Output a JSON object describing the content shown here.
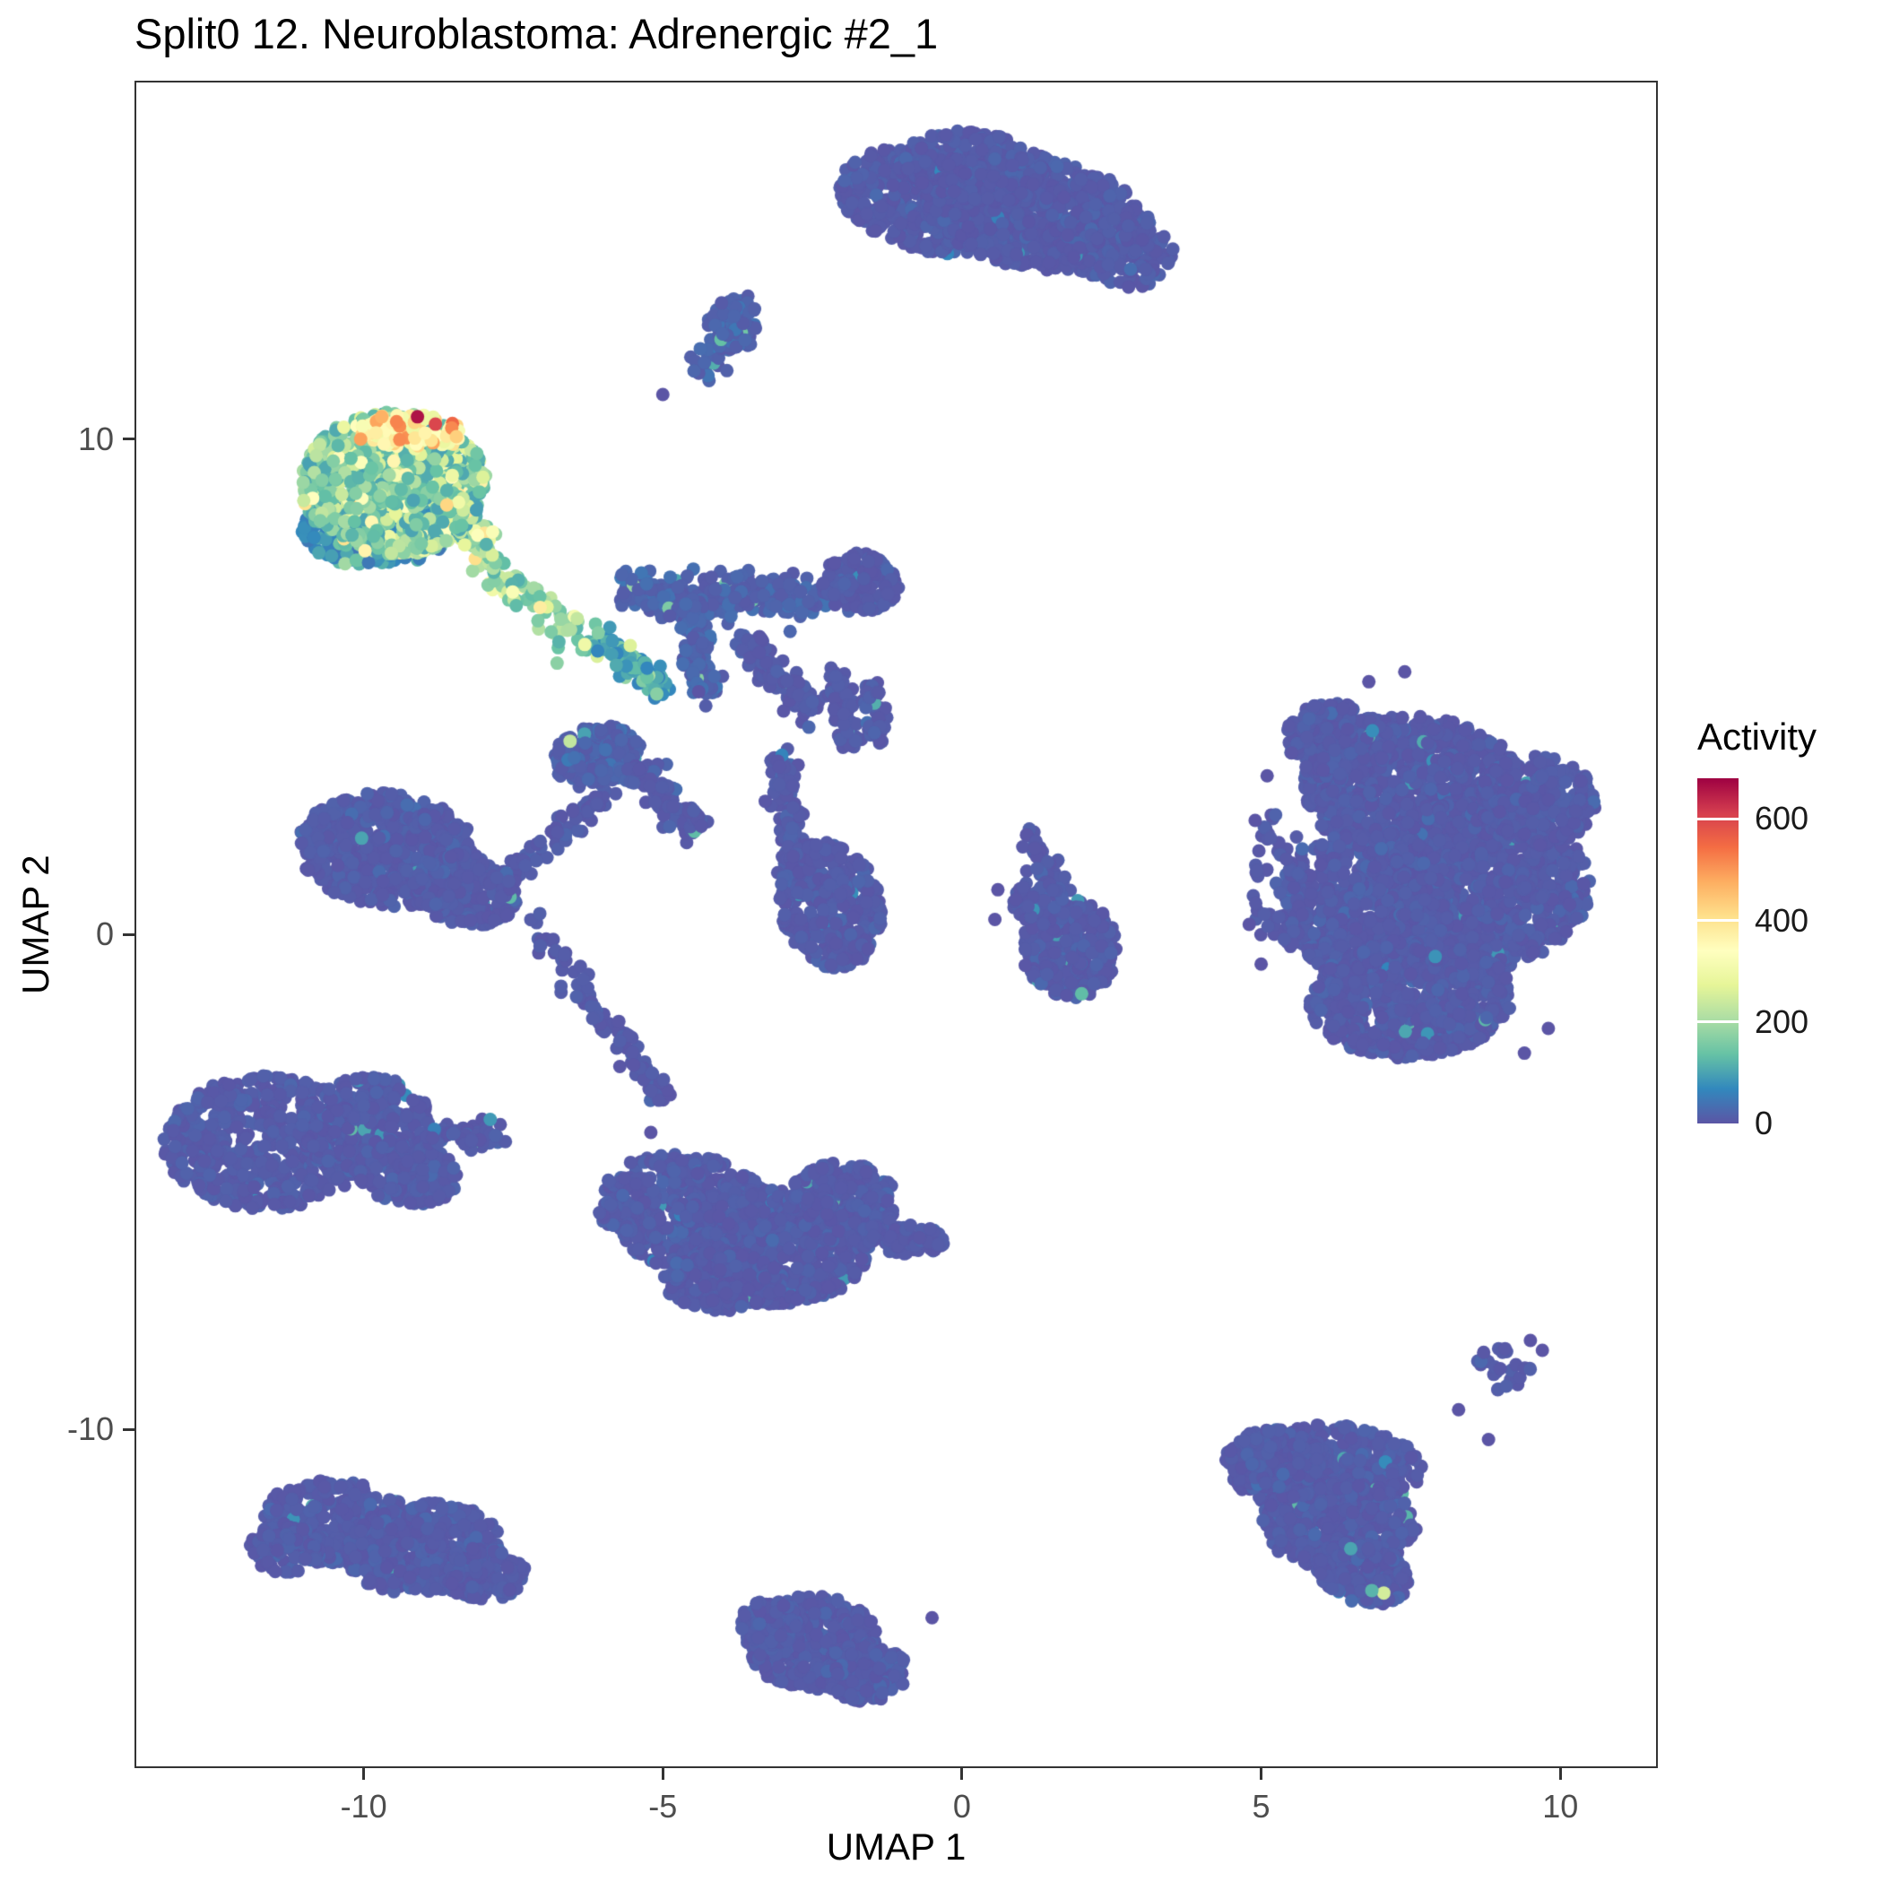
{
  "chart_data": {
    "type": "scatter",
    "title": "Split0 12. Neuroblastoma: Adrenergic #2_1",
    "xlabel": "UMAP 1",
    "ylabel": "UMAP 2",
    "xlim": [
      -13.8,
      11.6
    ],
    "ylim": [
      -16.8,
      17.2
    ],
    "xticks": [
      -10,
      -5,
      0,
      5,
      10
    ],
    "yticks": [
      10,
      0,
      -10
    ],
    "grid": false,
    "point_radius_px": 7.5,
    "legend": {
      "title": "Activity",
      "position": "right",
      "ticks": [
        600,
        400,
        200,
        0
      ],
      "domain": [
        0,
        680
      ]
    },
    "colormap": [
      {
        "v": 0,
        "c": "#5b55a5"
      },
      {
        "v": 68,
        "c": "#3288bd"
      },
      {
        "v": 136,
        "c": "#66c2a5"
      },
      {
        "v": 204,
        "c": "#abdda4"
      },
      {
        "v": 272,
        "c": "#e6f598"
      },
      {
        "v": 340,
        "c": "#ffffbf"
      },
      {
        "v": 408,
        "c": "#fee08b"
      },
      {
        "v": 476,
        "c": "#fdae61"
      },
      {
        "v": 544,
        "c": "#f46d43"
      },
      {
        "v": 612,
        "c": "#d53e4f"
      },
      {
        "v": 680,
        "c": "#9e0142"
      }
    ],
    "act_presets": {
      "low": {
        "b": 2,
        "s": 10,
        "p": 0.01,
        "lo": 50,
        "hi": 130
      },
      "low2": {
        "b": 6,
        "s": 18,
        "p": 0.04,
        "lo": 60,
        "hi": 200
      },
      "mid": {
        "b": 60,
        "s": 70,
        "p": 0.05,
        "lo": 200,
        "hi": 320
      },
      "trail": {
        "b": 110,
        "s": 95,
        "p": 0.12,
        "lo": 280,
        "hi": 420
      },
      "hot": {
        "b": 95,
        "s": 80,
        "p": 0.1,
        "lo": 240,
        "hi": 430
      },
      "hotlow": {
        "b": 45,
        "s": 45,
        "p": 0.05,
        "lo": 150,
        "hi": 260
      },
      "band": {
        "b": 280,
        "s": 95,
        "p": 0.15,
        "lo": 420,
        "hi": 520
      }
    },
    "clusters": [
      {
        "name": "top-bean-a",
        "k": "b",
        "x": -0.6,
        "y": 14.8,
        "rx": 1.5,
        "ry": 1.0,
        "rot": -20,
        "n": 450,
        "a": "low"
      },
      {
        "name": "top-bean-b",
        "k": "b",
        "x": 1.2,
        "y": 14.6,
        "rx": 1.9,
        "ry": 1.15,
        "rot": -15,
        "n": 700,
        "a": "low"
      },
      {
        "name": "top-bean-c",
        "k": "b",
        "x": 2.6,
        "y": 13.9,
        "rx": 1.0,
        "ry": 0.8,
        "rot": -30,
        "n": 200,
        "a": "low"
      },
      {
        "name": "top-bean-d",
        "k": "b",
        "x": 0.2,
        "y": 15.5,
        "rx": 1.2,
        "ry": 0.7,
        "rot": -10,
        "n": 250,
        "a": "low"
      },
      {
        "name": "upper-small-tail",
        "k": "s",
        "x1": -4.4,
        "y1": 11.3,
        "x2": -3.6,
        "y2": 12.8,
        "w": 0.25,
        "n": 60,
        "a": "low2"
      },
      {
        "name": "upper-small",
        "k": "b",
        "x": -3.8,
        "y": 12.3,
        "rx": 0.45,
        "ry": 0.55,
        "rot": 0,
        "n": 80,
        "a": "low2"
      },
      {
        "name": "mid-left-a",
        "k": "b",
        "x": -9.6,
        "y": 1.7,
        "rx": 1.5,
        "ry": 1.15,
        "rot": -10,
        "n": 650,
        "a": "low"
      },
      {
        "name": "mid-left-b",
        "k": "b",
        "x": -8.3,
        "y": 0.9,
        "rx": 0.9,
        "ry": 0.7,
        "rot": -20,
        "n": 250,
        "a": "low"
      },
      {
        "name": "arrow-a",
        "k": "b",
        "x": -11.6,
        "y": -4.2,
        "rx": 1.75,
        "ry": 1.35,
        "rot": 0,
        "n": 600,
        "a": "low"
      },
      {
        "name": "arrow-b",
        "k": "b",
        "x": -10.0,
        "y": -3.8,
        "rx": 1.1,
        "ry": 0.9,
        "rot": 15,
        "n": 300,
        "a": "low"
      },
      {
        "name": "arrow-c",
        "k": "b",
        "x": -9.3,
        "y": -4.8,
        "rx": 0.9,
        "ry": 0.65,
        "rot": -20,
        "n": 200,
        "a": "low"
      },
      {
        "name": "arrow-tail",
        "k": "s",
        "x1": -8.9,
        "y1": -4.1,
        "x2": -7.7,
        "y2": -4.0,
        "w": 0.25,
        "n": 60,
        "a": "low"
      },
      {
        "name": "bottom-mid-a",
        "k": "b",
        "x": -4.6,
        "y": -5.6,
        "rx": 1.5,
        "ry": 1.15,
        "rot": -15,
        "n": 500,
        "a": "low"
      },
      {
        "name": "bottom-mid-b",
        "k": "b",
        "x": -3.0,
        "y": -6.3,
        "rx": 1.5,
        "ry": 1.2,
        "rot": 10,
        "n": 550,
        "a": "low"
      },
      {
        "name": "bottom-mid-c",
        "k": "b",
        "x": -2.0,
        "y": -5.4,
        "rx": 0.9,
        "ry": 0.8,
        "rot": 0,
        "n": 250,
        "a": "low"
      },
      {
        "name": "bottom-mid-d",
        "k": "b",
        "x": -4.0,
        "y": -7.0,
        "rx": 1.0,
        "ry": 0.6,
        "rot": 0,
        "n": 200,
        "a": "low"
      },
      {
        "name": "bottom-mid-tip",
        "k": "s",
        "x1": -1.6,
        "y1": -6.0,
        "x2": -0.8,
        "y2": -6.2,
        "w": 0.28,
        "n": 70,
        "a": "low"
      },
      {
        "name": "bottom-mid-sat",
        "k": "b",
        "x": -0.55,
        "y": -6.15,
        "rx": 0.3,
        "ry": 0.25,
        "rot": 0,
        "n": 25,
        "a": "low"
      },
      {
        "name": "center-right-tail",
        "k": "s",
        "x1": 1.1,
        "y1": 2.0,
        "x2": 1.6,
        "y2": 0.9,
        "w": 0.25,
        "n": 50,
        "a": "low"
      },
      {
        "name": "center-right",
        "k": "b",
        "x": 1.8,
        "y": -0.3,
        "rx": 0.8,
        "ry": 1.0,
        "rot": 0,
        "n": 280,
        "a": "low"
      },
      {
        "name": "center-right-b",
        "k": "b",
        "x": 1.3,
        "y": 0.6,
        "rx": 0.45,
        "ry": 0.5,
        "rot": 0,
        "n": 80,
        "a": "low"
      },
      {
        "name": "right-mass-a",
        "k": "b",
        "x": 7.6,
        "y": 2.9,
        "rx": 1.9,
        "ry": 1.5,
        "rot": -10,
        "n": 900,
        "a": "low"
      },
      {
        "name": "right-mass-b",
        "k": "b",
        "x": 8.6,
        "y": 1.0,
        "rx": 1.9,
        "ry": 1.7,
        "rot": 0,
        "n": 1100,
        "a": "low"
      },
      {
        "name": "right-mass-c",
        "k": "b",
        "x": 6.8,
        "y": 0.6,
        "rx": 1.4,
        "ry": 1.5,
        "rot": 0,
        "n": 700,
        "a": "low"
      },
      {
        "name": "right-mass-d",
        "k": "b",
        "x": 7.5,
        "y": -1.3,
        "rx": 1.7,
        "ry": 1.2,
        "rot": 5,
        "n": 700,
        "a": "low"
      },
      {
        "name": "right-mass-e",
        "k": "b",
        "x": 9.6,
        "y": 2.7,
        "rx": 1.0,
        "ry": 0.9,
        "rot": 0,
        "n": 300,
        "a": "low"
      },
      {
        "name": "right-mass-f",
        "k": "b",
        "x": 6.3,
        "y": 3.9,
        "rx": 0.9,
        "ry": 0.75,
        "rot": -20,
        "n": 250,
        "a": "low"
      },
      {
        "name": "right-mass-west-satellites",
        "k": "b",
        "x": 5.3,
        "y": 1.0,
        "rx": 0.45,
        "ry": 1.5,
        "rot": 0,
        "n": 70,
        "a": "low"
      },
      {
        "name": "tri-a",
        "k": "b",
        "x": 6.1,
        "y": -10.8,
        "rx": 1.6,
        "ry": 0.9,
        "rot": 0,
        "n": 450,
        "a": "low"
      },
      {
        "name": "tri-b",
        "k": "b",
        "x": 6.3,
        "y": -11.9,
        "rx": 1.3,
        "ry": 0.9,
        "rot": 0,
        "n": 400,
        "a": "low"
      },
      {
        "name": "tri-c",
        "k": "b",
        "x": 6.7,
        "y": -12.9,
        "rx": 0.8,
        "ry": 0.6,
        "rot": -25,
        "n": 220,
        "a": "low"
      },
      {
        "name": "tri-d",
        "k": "b",
        "x": 5.2,
        "y": -10.6,
        "rx": 0.8,
        "ry": 0.6,
        "rot": 0,
        "n": 180,
        "a": "low"
      },
      {
        "name": "tri-satellite",
        "k": "b",
        "x": 9.0,
        "y": -8.8,
        "rx": 0.5,
        "ry": 0.45,
        "rot": 0,
        "n": 25,
        "a": "low"
      },
      {
        "name": "bottom-left-a",
        "k": "b",
        "x": -10.4,
        "y": -11.9,
        "rx": 1.3,
        "ry": 0.85,
        "rot": -10,
        "n": 350,
        "a": "low"
      },
      {
        "name": "bottom-left-b",
        "k": "b",
        "x": -9.0,
        "y": -12.4,
        "rx": 1.3,
        "ry": 0.9,
        "rot": 10,
        "n": 350,
        "a": "low"
      },
      {
        "name": "bottom-left-c",
        "k": "b",
        "x": -8.0,
        "y": -12.9,
        "rx": 0.7,
        "ry": 0.55,
        "rot": 0,
        "n": 150,
        "a": "low"
      },
      {
        "name": "bottom-left-d",
        "k": "b",
        "x": -11.3,
        "y": -12.4,
        "rx": 0.6,
        "ry": 0.5,
        "rot": 0,
        "n": 100,
        "a": "low"
      },
      {
        "name": "bottom-center-a",
        "k": "b",
        "x": -2.5,
        "y": -14.3,
        "rx": 1.1,
        "ry": 0.95,
        "rot": 0,
        "n": 400,
        "a": "low"
      },
      {
        "name": "bottom-center-b",
        "k": "b",
        "x": -1.6,
        "y": -14.9,
        "rx": 0.7,
        "ry": 0.6,
        "rot": 0,
        "n": 150,
        "a": "low"
      },
      {
        "name": "bottom-center-c",
        "k": "b",
        "x": -3.2,
        "y": -13.9,
        "rx": 0.5,
        "ry": 0.45,
        "rot": 0,
        "n": 100,
        "a": "low"
      },
      {
        "name": "net-left-diagonal",
        "k": "s",
        "x1": -7.8,
        "y1": 0.9,
        "x2": -5.9,
        "y2": 2.9,
        "w": 0.22,
        "n": 90,
        "a": "low"
      },
      {
        "name": "net-lower-diagonal",
        "k": "s",
        "x1": -7.2,
        "y1": 0.3,
        "x2": -4.9,
        "y2": -3.4,
        "w": 0.22,
        "n": 90,
        "a": "low"
      },
      {
        "name": "net-band",
        "k": "s",
        "x1": -5.6,
        "y1": 6.9,
        "x2": -2.3,
        "y2": 6.8,
        "w": 0.35,
        "n": 300,
        "a": "low2"
      },
      {
        "name": "net-band-east",
        "k": "b",
        "x": -1.7,
        "y": 7.1,
        "rx": 0.65,
        "ry": 0.6,
        "rot": 0,
        "n": 150,
        "a": "low"
      },
      {
        "name": "net-vertical",
        "k": "s",
        "x1": -4.55,
        "y1": 6.7,
        "x2": -4.3,
        "y2": 4.9,
        "w": 0.22,
        "n": 130,
        "a": "low2"
      },
      {
        "name": "net-diag-c",
        "k": "s",
        "x1": -3.7,
        "y1": 6.0,
        "x2": -2.5,
        "y2": 4.5,
        "w": 0.22,
        "n": 130,
        "a": "low"
      },
      {
        "name": "net-hub",
        "k": "b",
        "x": -6.1,
        "y": 3.6,
        "rx": 0.75,
        "ry": 0.6,
        "rot": 20,
        "n": 220,
        "a": "low2"
      },
      {
        "name": "net-diag-e",
        "k": "s",
        "x1": -5.45,
        "y1": 3.3,
        "x2": -4.4,
        "y2": 2.1,
        "w": 0.25,
        "n": 130,
        "a": "low"
      },
      {
        "name": "net-stem",
        "k": "s",
        "x1": -3.0,
        "y1": 3.6,
        "x2": -2.8,
        "y2": 1.2,
        "w": 0.2,
        "n": 140,
        "a": "low"
      },
      {
        "name": "net-core",
        "k": "b",
        "x": -2.2,
        "y": 0.6,
        "rx": 0.85,
        "ry": 1.3,
        "rot": 10,
        "n": 380,
        "a": "low"
      },
      {
        "name": "net-col-1",
        "k": "s",
        "x1": -2.1,
        "y1": 5.3,
        "x2": -1.9,
        "y2": 3.8,
        "w": 0.18,
        "n": 90,
        "a": "low"
      },
      {
        "name": "net-col-2",
        "k": "s",
        "x1": -1.5,
        "y1": 5.0,
        "x2": -1.4,
        "y2": 3.9,
        "w": 0.15,
        "n": 60,
        "a": "low"
      },
      {
        "name": "gradient-trail-low",
        "k": "s",
        "x1": -6.3,
        "y1": 6.0,
        "x2": -4.9,
        "y2": 5.0,
        "w": 0.28,
        "n": 90,
        "a": "mid"
      },
      {
        "name": "gradient-trail-high",
        "k": "s",
        "x1": -8.0,
        "y1": 7.6,
        "x2": -6.4,
        "y2": 5.9,
        "w": 0.3,
        "n": 80,
        "a": "trail"
      },
      {
        "name": "hot-tail",
        "k": "s",
        "x1": -8.6,
        "y1": 8.4,
        "x2": -7.9,
        "y2": 7.8,
        "w": 0.3,
        "n": 60,
        "a": "trail"
      },
      {
        "name": "hot-fringe",
        "k": "b",
        "x": -9.8,
        "y": 8.2,
        "rx": 1.25,
        "ry": 0.8,
        "rot": 0,
        "n": 260,
        "a": "hotlow"
      },
      {
        "name": "hot-main",
        "k": "b",
        "x": -9.5,
        "y": 9.1,
        "rx": 1.55,
        "ry": 1.45,
        "rot": 0,
        "n": 850,
        "a": "hot"
      },
      {
        "name": "hot-top-band",
        "k": "b",
        "x": -9.2,
        "y": 10.15,
        "rx": 0.95,
        "ry": 0.38,
        "rot": 0,
        "n": 90,
        "a": "band"
      },
      {
        "name": "hot-peaks",
        "k": "p",
        "pts": [
          [
            -9.1,
            10.45,
            660
          ],
          [
            -8.8,
            10.3,
            600
          ],
          [
            -9.45,
            10.35,
            520
          ],
          [
            -10.05,
            10.0,
            490
          ],
          [
            -8.45,
            10.05,
            430
          ],
          [
            -9.7,
            10.45,
            470
          ],
          [
            -7.05,
            6.6,
            380
          ],
          [
            -6.55,
            3.9,
            230
          ],
          [
            2.0,
            -1.2,
            130
          ],
          [
            7.05,
            -13.3,
            250
          ],
          [
            6.85,
            -13.25,
            120
          ]
        ]
      },
      {
        "name": "scatter-singletons",
        "k": "p",
        "pts": [
          [
            -5.2,
            -4.0,
            0
          ],
          [
            0.6,
            0.9,
            0
          ],
          [
            0.55,
            0.3,
            0
          ],
          [
            4.9,
            2.3,
            0
          ],
          [
            4.8,
            0.2,
            0
          ],
          [
            5.0,
            -0.6,
            0
          ],
          [
            5.1,
            3.2,
            0
          ],
          [
            9.4,
            -2.4,
            0
          ],
          [
            9.8,
            -1.9,
            0
          ],
          [
            6.8,
            5.1,
            0
          ],
          [
            7.4,
            5.3,
            0
          ],
          [
            8.3,
            -9.6,
            0
          ],
          [
            8.8,
            -10.2,
            0
          ],
          [
            9.5,
            -8.2,
            0
          ],
          [
            9.7,
            -8.4,
            0
          ],
          [
            -0.5,
            -13.8,
            0
          ],
          [
            -4.4,
            4.9,
            0
          ],
          [
            -5.0,
            10.9,
            0
          ]
        ]
      }
    ]
  }
}
